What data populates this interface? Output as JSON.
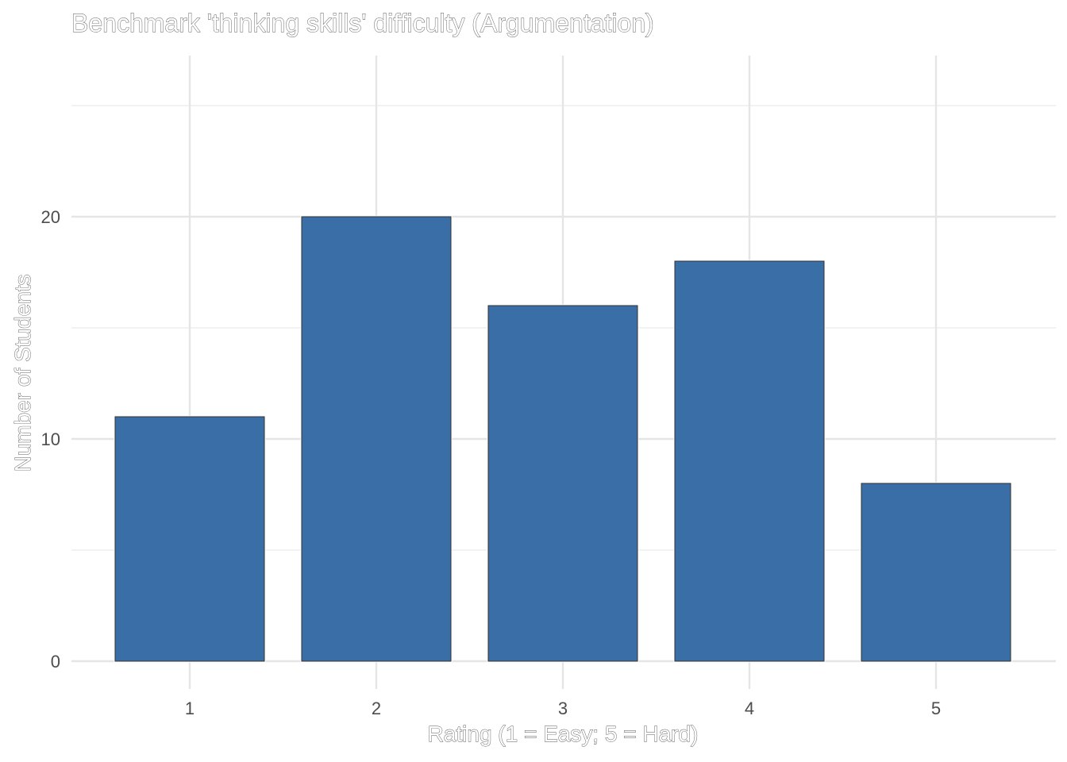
{
  "chart_data": {
    "type": "bar",
    "title": "Benchmark 'thinking skills' difficulty (Argumentation)",
    "xlabel": "Rating (1 = Easy; 5 = Hard)",
    "ylabel": "Number of Students",
    "categories": [
      "1",
      "2",
      "3",
      "4",
      "5"
    ],
    "values": [
      11,
      20,
      16,
      18,
      8
    ],
    "ylim": [
      0,
      25
    ],
    "y_ticks": [
      0,
      10,
      20
    ],
    "y_minor_ticks": [
      5,
      15,
      25
    ],
    "grid": true,
    "legend": "none",
    "colors": {
      "bar_fill": "#3a6ea6",
      "bar_outline": "#333333",
      "grid": "#e5e5e5",
      "text": "#4d4d4d"
    }
  }
}
